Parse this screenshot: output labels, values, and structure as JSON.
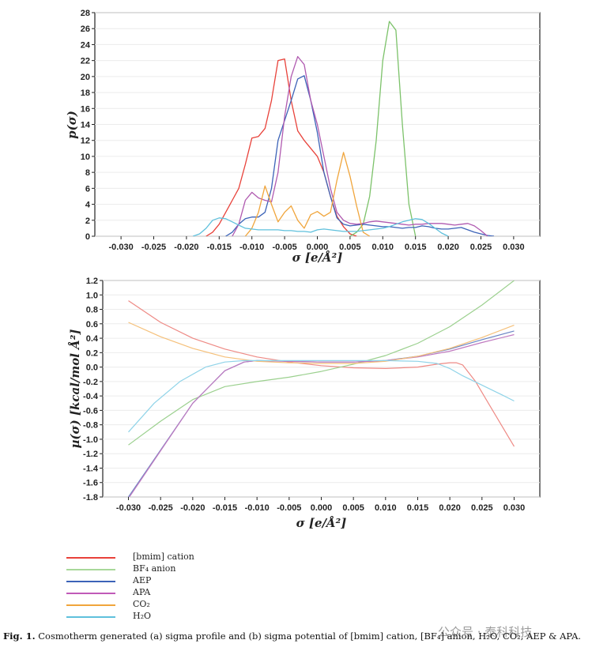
{
  "chart_data": [
    {
      "type": "line",
      "panel": "a",
      "xlabel": "σ [e/Å²]",
      "ylabel": "p(σ)",
      "xlim": [
        -0.034,
        0.034
      ],
      "ylim": [
        0,
        28
      ],
      "xticks": [
        -0.03,
        -0.025,
        -0.02,
        -0.015,
        -0.01,
        -0.005,
        0.0,
        0.005,
        0.01,
        0.015,
        0.02,
        0.025,
        0.03
      ],
      "xtick_labels": [
        "-0.030",
        "-0.025",
        "-0.020",
        "-0.015",
        "-0.010",
        "-0.005",
        "0.000",
        "0.005",
        "0.010",
        "0.015",
        "0.020",
        "0.025",
        "0.030"
      ],
      "yticks": [
        0,
        2,
        4,
        6,
        8,
        10,
        12,
        14,
        16,
        18,
        20,
        22,
        24,
        26,
        28
      ],
      "grid": true,
      "series": [
        {
          "key": "bmim",
          "color": "#e8423a",
          "x": [
            -0.017,
            -0.016,
            -0.015,
            -0.014,
            -0.013,
            -0.012,
            -0.011,
            -0.01,
            -0.009,
            -0.008,
            -0.007,
            -0.006,
            -0.005,
            -0.004,
            -0.003,
            -0.002,
            -0.001,
            0.0,
            0.001,
            0.002,
            0.003,
            0.004,
            0.005,
            0.006
          ],
          "y": [
            0,
            0.5,
            1.5,
            3,
            4.5,
            6,
            9,
            12.3,
            12.5,
            13.5,
            17,
            22,
            22.2,
            17,
            13.2,
            12,
            11,
            10,
            8,
            5,
            2.5,
            1.2,
            0.3,
            0
          ]
        },
        {
          "key": "bf4",
          "color": "#7cc26a",
          "x": [
            0.005,
            0.006,
            0.007,
            0.008,
            0.009,
            0.01,
            0.011,
            0.012,
            0.013,
            0.014,
            0.015
          ],
          "y": [
            0,
            0.5,
            1.5,
            5,
            12,
            22,
            26.9,
            25.8,
            14,
            4,
            0
          ]
        },
        {
          "key": "aep",
          "color": "#3c63b8",
          "x": [
            -0.014,
            -0.013,
            -0.012,
            -0.011,
            -0.01,
            -0.009,
            -0.008,
            -0.007,
            -0.006,
            -0.005,
            -0.004,
            -0.003,
            -0.002,
            -0.001,
            0.0,
            0.001,
            0.002,
            0.003,
            0.004,
            0.005,
            0.006,
            0.007,
            0.008,
            0.009,
            0.01,
            0.011,
            0.012,
            0.013,
            0.014,
            0.015,
            0.016,
            0.017,
            0.018,
            0.019,
            0.02,
            0.021,
            0.022,
            0.023,
            0.024,
            0.025,
            0.026,
            0.027
          ],
          "y": [
            0,
            0.5,
            1.5,
            2.2,
            2.4,
            2.4,
            3,
            6,
            12,
            14.5,
            17,
            19.7,
            20.1,
            17,
            13,
            8,
            5,
            2.3,
            1.5,
            1.3,
            1.4,
            1.5,
            1.4,
            1.3,
            1.2,
            1.2,
            1.1,
            1.0,
            1.1,
            1.1,
            1.3,
            1.2,
            1.0,
            0.9,
            0.9,
            1.0,
            1.1,
            0.8,
            0.5,
            0.3,
            0.1,
            0
          ]
        },
        {
          "key": "apa",
          "color": "#b05ab0",
          "x": [
            -0.013,
            -0.012,
            -0.011,
            -0.01,
            -0.009,
            -0.008,
            -0.007,
            -0.006,
            -0.005,
            -0.004,
            -0.003,
            -0.002,
            -0.001,
            0.0,
            0.001,
            0.002,
            0.003,
            0.004,
            0.005,
            0.006,
            0.007,
            0.008,
            0.009,
            0.01,
            0.011,
            0.012,
            0.013,
            0.014,
            0.015,
            0.016,
            0.017,
            0.018,
            0.019,
            0.02,
            0.021,
            0.022,
            0.023,
            0.024,
            0.025,
            0.026
          ],
          "y": [
            0,
            1.5,
            4.5,
            5.5,
            4.8,
            4.5,
            4.3,
            8,
            15,
            20,
            22.5,
            21.5,
            17,
            14,
            10,
            6,
            3,
            2,
            1.6,
            1.5,
            1.6,
            1.8,
            1.9,
            1.8,
            1.7,
            1.6,
            1.5,
            1.4,
            1.5,
            1.5,
            1.6,
            1.6,
            1.6,
            1.5,
            1.4,
            1.5,
            1.6,
            1.3,
            0.7,
            0
          ]
        },
        {
          "key": "co2",
          "color": "#f0a53c",
          "x": [
            -0.011,
            -0.01,
            -0.009,
            -0.008,
            -0.007,
            -0.006,
            -0.005,
            -0.004,
            -0.003,
            -0.002,
            -0.001,
            0.0,
            0.001,
            0.002,
            0.003,
            0.004,
            0.005,
            0.006,
            0.007,
            0.008
          ],
          "y": [
            0,
            1,
            3,
            6.3,
            4,
            1.8,
            3,
            3.8,
            2,
            1,
            2.7,
            3.1,
            2.5,
            3,
            7,
            10.5,
            7.5,
            3.8,
            0.5,
            0
          ]
        },
        {
          "key": "h2o",
          "color": "#5fc0dc",
          "x": [
            -0.019,
            -0.018,
            -0.017,
            -0.016,
            -0.015,
            -0.014,
            -0.013,
            -0.012,
            -0.011,
            -0.01,
            -0.009,
            -0.008,
            -0.007,
            -0.006,
            -0.005,
            -0.004,
            -0.003,
            -0.002,
            -0.001,
            0.0,
            0.001,
            0.002,
            0.003,
            0.004,
            0.005,
            0.006,
            0.007,
            0.008,
            0.009,
            0.01,
            0.011,
            0.012,
            0.013,
            0.014,
            0.015,
            0.016,
            0.017,
            0.018,
            0.019,
            0.02
          ],
          "y": [
            0,
            0.3,
            1.0,
            2.0,
            2.3,
            2.2,
            1.8,
            1.4,
            1.0,
            0.9,
            0.8,
            0.8,
            0.8,
            0.8,
            0.7,
            0.7,
            0.6,
            0.6,
            0.5,
            0.8,
            0.9,
            0.8,
            0.7,
            0.6,
            0.6,
            0.6,
            0.7,
            0.8,
            0.9,
            1.0,
            1.2,
            1.5,
            1.8,
            2.0,
            2.2,
            2.1,
            1.6,
            1.0,
            0.4,
            0
          ]
        }
      ]
    },
    {
      "type": "line",
      "panel": "b",
      "xlabel": "σ [e/Å²]",
      "ylabel": "µ(σ) [kcal/mol Å²]",
      "xlim": [
        -0.034,
        0.034
      ],
      "ylim": [
        -1.8,
        1.2
      ],
      "xticks": [
        -0.03,
        -0.025,
        -0.02,
        -0.015,
        -0.01,
        -0.005,
        0.0,
        0.005,
        0.01,
        0.015,
        0.02,
        0.025,
        0.03
      ],
      "xtick_labels": [
        "-0.030",
        "-0.025",
        "-0.020",
        "-0.015",
        "-0.010",
        "-0.005",
        "0.000",
        "0.005",
        "0.010",
        "0.015",
        "0.020",
        "0.025",
        "0.030"
      ],
      "yticks": [
        1.2,
        1.0,
        0.8,
        0.6,
        0.4,
        0.2,
        0.0,
        -0.2,
        -0.4,
        -0.6,
        -0.8,
        -1.0,
        -1.2,
        -1.4,
        -1.6,
        -1.8
      ],
      "ytick_labels": [
        "1.2",
        "1.0",
        "0.8",
        "0.6",
        "0.4",
        "0.2",
        "0.0",
        "-0.2",
        "-0.4",
        "-0.6",
        "-0.8",
        "-1.0",
        "-1.2",
        "-1.4",
        "-1.6",
        "-1.8"
      ],
      "grid": true,
      "series": [
        {
          "key": "bmim",
          "color": "#ee8a85",
          "x": [
            -0.03,
            -0.025,
            -0.02,
            -0.015,
            -0.01,
            -0.005,
            0.0,
            0.005,
            0.01,
            0.015,
            0.018,
            0.02,
            0.021,
            0.022,
            0.024,
            0.026,
            0.028,
            0.03
          ],
          "y": [
            0.92,
            0.62,
            0.4,
            0.25,
            0.14,
            0.07,
            0.02,
            -0.01,
            -0.02,
            0.0,
            0.04,
            0.06,
            0.06,
            0.03,
            -0.2,
            -0.5,
            -0.8,
            -1.1
          ]
        },
        {
          "key": "bf4",
          "color": "#9bd08e",
          "x": [
            -0.03,
            -0.025,
            -0.02,
            -0.015,
            -0.01,
            -0.005,
            0.0,
            0.005,
            0.01,
            0.015,
            0.02,
            0.025,
            0.03
          ],
          "y": [
            -1.08,
            -0.75,
            -0.45,
            -0.27,
            -0.2,
            -0.14,
            -0.06,
            0.04,
            0.16,
            0.33,
            0.56,
            0.86,
            1.2
          ]
        },
        {
          "key": "aep",
          "color": "#6a86c4",
          "x": [
            -0.03,
            -0.025,
            -0.02,
            -0.015,
            -0.012,
            -0.01,
            -0.005,
            0.0,
            0.005,
            0.01,
            0.015,
            0.02,
            0.025,
            0.03
          ],
          "y": [
            -1.8,
            -1.15,
            -0.5,
            -0.05,
            0.07,
            0.09,
            0.08,
            0.07,
            0.07,
            0.09,
            0.15,
            0.25,
            0.38,
            0.5
          ]
        },
        {
          "key": "apa",
          "color": "#c07ac0",
          "x": [
            -0.03,
            -0.025,
            -0.02,
            -0.015,
            -0.012,
            -0.01,
            -0.005,
            0.0,
            0.005,
            0.01,
            0.015,
            0.02,
            0.025,
            0.03
          ],
          "y": [
            -1.82,
            -1.16,
            -0.5,
            -0.05,
            0.07,
            0.09,
            0.08,
            0.07,
            0.07,
            0.09,
            0.14,
            0.22,
            0.34,
            0.45
          ]
        },
        {
          "key": "co2",
          "color": "#f5c07a",
          "x": [
            -0.03,
            -0.025,
            -0.02,
            -0.015,
            -0.01,
            -0.005,
            0.0,
            0.005,
            0.01,
            0.015,
            0.02,
            0.025,
            0.03
          ],
          "y": [
            0.62,
            0.42,
            0.26,
            0.14,
            0.08,
            0.06,
            0.05,
            0.05,
            0.08,
            0.15,
            0.26,
            0.41,
            0.58
          ]
        },
        {
          "key": "h2o",
          "color": "#8fd3e8",
          "x": [
            -0.03,
            -0.026,
            -0.022,
            -0.018,
            -0.015,
            -0.012,
            -0.01,
            -0.005,
            0.0,
            0.005,
            0.01,
            0.015,
            0.018,
            0.02,
            0.022,
            0.025,
            0.028,
            0.03
          ],
          "y": [
            -0.9,
            -0.5,
            -0.2,
            0.0,
            0.07,
            0.09,
            0.09,
            0.09,
            0.09,
            0.09,
            0.09,
            0.08,
            0.05,
            -0.02,
            -0.12,
            -0.25,
            -0.38,
            -0.47
          ]
        }
      ]
    }
  ],
  "legend": [
    {
      "key": "bmim",
      "label": "[bmim] cation",
      "color": "#e8423a"
    },
    {
      "key": "bf4",
      "label": "BF₄ anion",
      "color": "#a8d89a"
    },
    {
      "key": "aep",
      "label": "AEP",
      "color": "#3c63b8"
    },
    {
      "key": "apa",
      "label": "APA",
      "color": "#c05ab8"
    },
    {
      "key": "co2",
      "label": "CO₂",
      "color": "#f0a53c"
    },
    {
      "key": "h2o",
      "label": "H₂O",
      "color": "#5fc0dc"
    }
  ],
  "caption": {
    "prefix": "Fig. 1.",
    "text": "Cosmotherm generated (a) sigma profile and (b) sigma potential of [bmim] cation, [BF₄] anion, H₂O, CO₂, AEP & APA."
  },
  "watermark": "公众号 · 泰科科技"
}
